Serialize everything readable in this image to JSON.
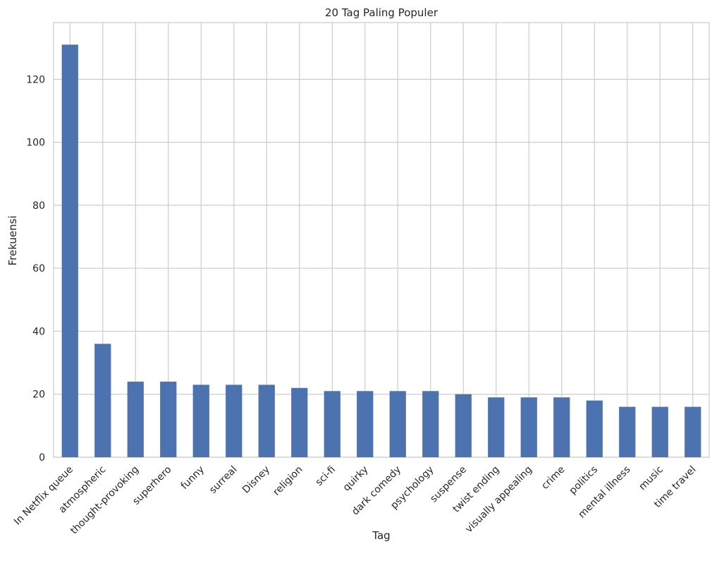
{
  "chart_data": {
    "type": "bar",
    "title": "20 Tag Paling Populer",
    "xlabel": "Tag",
    "ylabel": "Frekuensi",
    "categories": [
      "In Netflix queue",
      "atmospheric",
      "thought-provoking",
      "superhero",
      "funny",
      "surreal",
      "Disney",
      "religion",
      "sci-fi",
      "quirky",
      "dark comedy",
      "psychology",
      "suspense",
      "twist ending",
      "visually appealing",
      "crime",
      "politics",
      "mental illness",
      "music",
      "time travel"
    ],
    "values": [
      131,
      36,
      24,
      24,
      23,
      23,
      23,
      22,
      21,
      21,
      21,
      21,
      20,
      19,
      19,
      19,
      18,
      16,
      16,
      16
    ],
    "ylim": [
      0,
      138
    ],
    "yticks": [
      0,
      20,
      40,
      60,
      80,
      100,
      120
    ],
    "grid": true,
    "legend": "none",
    "colors": {
      "bar": "#4c72b0",
      "grid": "#cccccc",
      "background": "#ffffff",
      "text": "#262626"
    }
  }
}
